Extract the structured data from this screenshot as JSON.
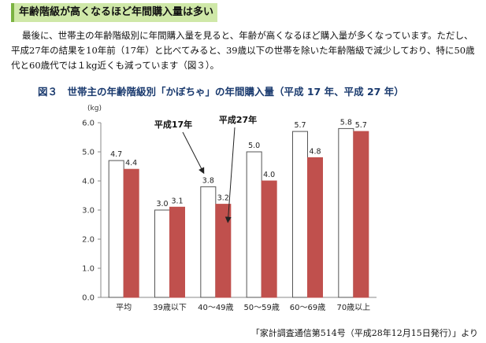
{
  "heading": "年齢階級が高くなるほど年間購入量は多い",
  "paragraph": "最後に、世帯主の年齢階級別に年間購入量を見ると、年齢が高くなるほど購入量が多くなっています。ただし、平成27年の結果を10年前（17年）と比べてみると、39歳以下の世帯を除いた年齢階級で減少しており、特に50歳代と60歳代では１kg近くも減っています（図３）。",
  "figure_title": "図３　世帯主の年齢階級別「かぼちゃ」の年間購入量（平成 17 年、平成 27 年）",
  "source": "「家計調査通信第514号（平成28年12月15日発行）」より",
  "colors": {
    "h17_fill": "#ffffff",
    "h17_stroke": "#555555",
    "h27_fill": "#c0504d",
    "axis": "#888888",
    "grid": "#dddddd"
  },
  "chart_data": {
    "type": "bar",
    "title": "",
    "ylabel": "(kg)",
    "xlabel": "",
    "ylim": [
      0,
      6
    ],
    "yticks": [
      "0.0",
      "1.0",
      "2.0",
      "3.0",
      "4.0",
      "5.0",
      "6.0"
    ],
    "categories": [
      "平均",
      "39歳以下",
      "40～49歳",
      "50～59歳",
      "60～69歳",
      "70歳以上"
    ],
    "series": [
      {
        "name": "平成17年",
        "values": [
          4.7,
          3.0,
          3.8,
          5.0,
          5.7,
          5.8
        ],
        "labels": [
          "4.7",
          "3.0",
          "3.8",
          "5.0",
          "5.7",
          "5.8"
        ]
      },
      {
        "name": "平成27年",
        "values": [
          4.4,
          3.1,
          3.2,
          4.0,
          4.8,
          5.7
        ],
        "labels": [
          "4.4",
          "3.1",
          "3.2",
          "4.0",
          "4.8",
          "5.7"
        ]
      }
    ],
    "annotations": [
      "平成17年",
      "平成27年"
    ],
    "grid": false,
    "legend": "none"
  }
}
